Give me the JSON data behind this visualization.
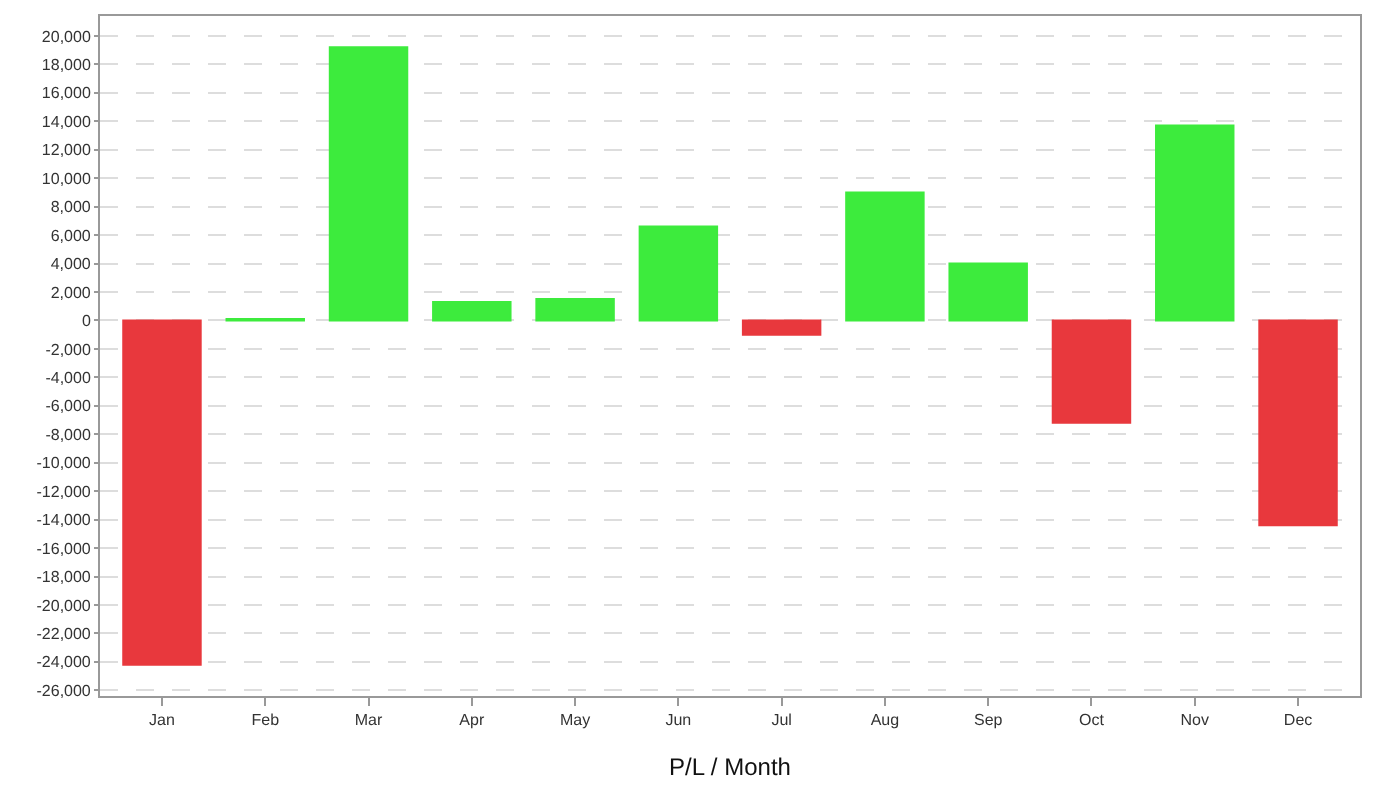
{
  "chart_data": {
    "type": "bar",
    "xlabel": "P/L / Month",
    "categories": [
      "Jan",
      "Feb",
      "Mar",
      "Apr",
      "May",
      "Jun",
      "Jul",
      "Aug",
      "Sep",
      "Oct",
      "Nov",
      "Dec"
    ],
    "values": [
      -24200,
      100,
      19200,
      1300,
      1500,
      6600,
      -1000,
      9000,
      4000,
      -7200,
      13700,
      -14400
    ],
    "colors": [
      "#e8383d",
      "#3deb3d",
      "#3deb3d",
      "#3deb3d",
      "#3deb3d",
      "#3deb3d",
      "#e8383d",
      "#3deb3d",
      "#3deb3d",
      "#e8383d",
      "#3deb3d",
      "#e8383d"
    ],
    "ylim": [
      -26400,
      21400
    ],
    "yticks": [
      {
        "value": -26000,
        "label": "-26,000"
      },
      {
        "value": -24000,
        "label": "-24,000"
      },
      {
        "value": -22000,
        "label": "-22,000"
      },
      {
        "value": -20000,
        "label": "-20,000"
      },
      {
        "value": -18000,
        "label": "-18,000"
      },
      {
        "value": -16000,
        "label": "-16,000"
      },
      {
        "value": -14000,
        "label": "-14,000"
      },
      {
        "value": -12000,
        "label": "-12,000"
      },
      {
        "value": -10000,
        "label": "-10,000"
      },
      {
        "value": -8000,
        "label": "-8,000"
      },
      {
        "value": -6000,
        "label": "-6,000"
      },
      {
        "value": -4000,
        "label": "-4,000"
      },
      {
        "value": -2000,
        "label": "-2,000"
      },
      {
        "value": 0,
        "label": "0"
      },
      {
        "value": 2000,
        "label": "2,000"
      },
      {
        "value": 4000,
        "label": "4,000"
      },
      {
        "value": 6000,
        "label": "6,000"
      },
      {
        "value": 8000,
        "label": "8,000"
      },
      {
        "value": 10000,
        "label": "10,000"
      },
      {
        "value": 12000,
        "label": "12,000"
      },
      {
        "value": 14000,
        "label": "14,000"
      },
      {
        "value": 16000,
        "label": "16,000"
      },
      {
        "value": 18000,
        "label": "18,000"
      },
      {
        "value": 20000,
        "label": "20,000"
      }
    ],
    "grid": "y"
  }
}
